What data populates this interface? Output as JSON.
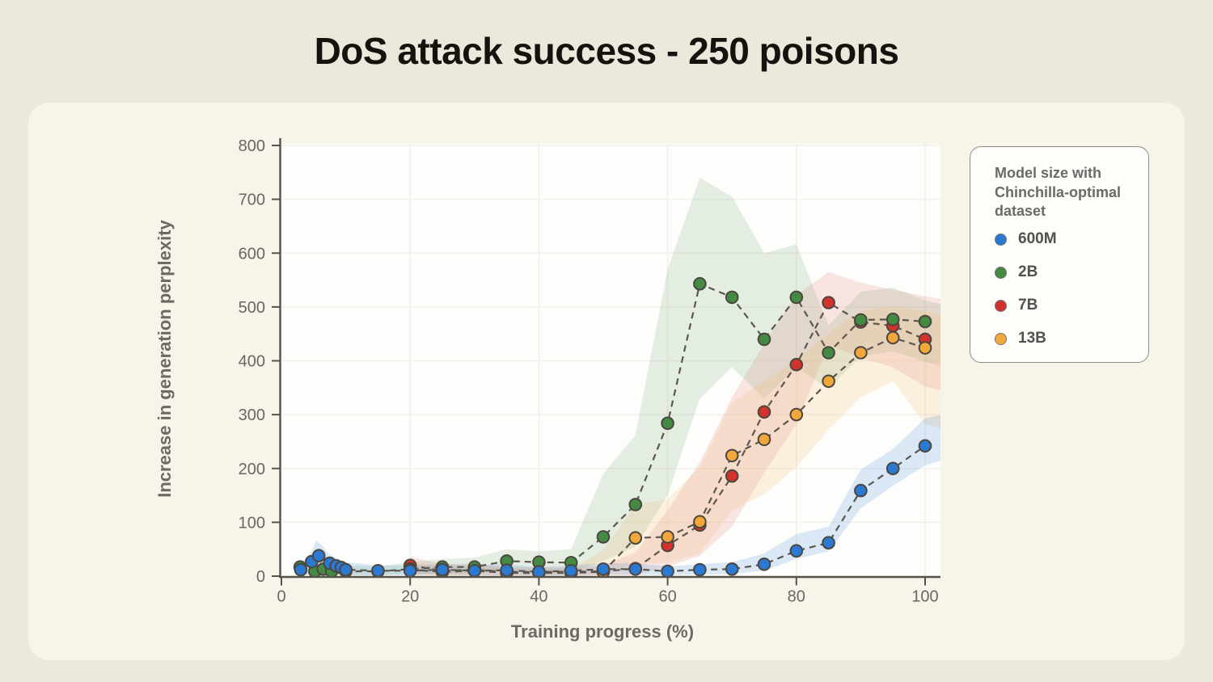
{
  "page": {
    "title": "DoS attack success - 250 poisons"
  },
  "chart_data": {
    "type": "line",
    "title": "DoS attack success - 250 poisons",
    "xlabel": "Training progress (%)",
    "ylabel": "Increase in generation perplexity",
    "xlim": [
      0,
      102.5
    ],
    "ylim": [
      0,
      800
    ],
    "xticks": [
      0,
      20,
      40,
      60,
      80,
      100
    ],
    "yticks": [
      0,
      100,
      200,
      300,
      400,
      500,
      600,
      700,
      800
    ],
    "grid": true,
    "marker_style": "circle-dashed-line",
    "line_color": "#5b574f",
    "legend": {
      "title": "Model size with Chinchilla-optimal dataset",
      "position": "outside-right"
    },
    "series": [
      {
        "name": "600M",
        "color": "#2b79d2",
        "band_color": "rgba(96,153,219,0.22)",
        "points": [
          [
            3,
            12
          ],
          [
            4.7,
            27
          ],
          [
            5.8,
            38
          ],
          [
            7.5,
            24
          ],
          [
            8.5,
            19
          ],
          [
            9.3,
            16
          ],
          [
            10,
            12
          ],
          [
            15,
            10
          ],
          [
            20,
            10
          ],
          [
            25,
            12
          ],
          [
            30,
            10
          ],
          [
            35,
            11
          ],
          [
            40,
            8
          ],
          [
            45,
            10
          ],
          [
            50,
            13
          ],
          [
            55,
            13
          ],
          [
            60,
            9
          ],
          [
            65,
            12
          ],
          [
            70,
            13
          ],
          [
            75,
            22
          ],
          [
            80,
            47
          ],
          [
            85,
            62
          ],
          [
            90,
            159
          ],
          [
            95,
            200
          ],
          [
            100,
            242
          ]
        ],
        "band": [
          [
            3,
            0,
            24
          ],
          [
            4.5,
            4,
            42
          ],
          [
            5.4,
            8,
            66
          ],
          [
            6.2,
            6,
            58
          ],
          [
            7.5,
            4,
            40
          ],
          [
            8.5,
            3,
            34
          ],
          [
            10,
            2,
            26
          ],
          [
            15,
            2,
            20
          ],
          [
            20,
            2,
            20
          ],
          [
            25,
            3,
            22
          ],
          [
            30,
            2,
            20
          ],
          [
            35,
            2,
            22
          ],
          [
            40,
            1,
            16
          ],
          [
            45,
            2,
            20
          ],
          [
            50,
            3,
            24
          ],
          [
            55,
            3,
            24
          ],
          [
            60,
            2,
            18
          ],
          [
            65,
            3,
            22
          ],
          [
            70,
            4,
            26
          ],
          [
            75,
            10,
            42
          ],
          [
            80,
            32,
            78
          ],
          [
            85,
            46,
            92
          ],
          [
            90,
            126,
            198
          ],
          [
            95,
            168,
            236
          ],
          [
            100,
            206,
            293
          ],
          [
            102.5,
            215,
            300
          ]
        ]
      },
      {
        "name": "2B",
        "color": "#448a43",
        "band_color": "rgba(101,160,101,0.17)",
        "points": [
          [
            2.9,
            17
          ],
          [
            5.2,
            9
          ],
          [
            6.5,
            13
          ],
          [
            7.8,
            9
          ],
          [
            10,
            9
          ],
          [
            15,
            9
          ],
          [
            20,
            13
          ],
          [
            25,
            17
          ],
          [
            30,
            17
          ],
          [
            35,
            28
          ],
          [
            40,
            26
          ],
          [
            45,
            25
          ],
          [
            50,
            73
          ],
          [
            55,
            133
          ],
          [
            60,
            284
          ],
          [
            65,
            543
          ],
          [
            70,
            518
          ],
          [
            75,
            440
          ],
          [
            80,
            518
          ],
          [
            85,
            415
          ],
          [
            90,
            476
          ],
          [
            95,
            477
          ],
          [
            100,
            473
          ]
        ],
        "band": [
          [
            2.9,
            4,
            30
          ],
          [
            5.2,
            2,
            22
          ],
          [
            10,
            2,
            20
          ],
          [
            15,
            2,
            18
          ],
          [
            20,
            4,
            26
          ],
          [
            25,
            5,
            32
          ],
          [
            30,
            5,
            34
          ],
          [
            35,
            12,
            50
          ],
          [
            40,
            10,
            46
          ],
          [
            45,
            8,
            50
          ],
          [
            50,
            28,
            190
          ],
          [
            55,
            55,
            262
          ],
          [
            60,
            150,
            570
          ],
          [
            65,
            330,
            740
          ],
          [
            70,
            388,
            705
          ],
          [
            75,
            330,
            600
          ],
          [
            80,
            388,
            616
          ],
          [
            85,
            348,
            466
          ],
          [
            90,
            408,
            528
          ],
          [
            95,
            418,
            536
          ],
          [
            100,
            398,
            512
          ],
          [
            102.5,
            390,
            505
          ]
        ]
      },
      {
        "name": "7B",
        "color": "#d2312c",
        "band_color": "rgba(219,95,88,0.15)",
        "points": [
          [
            20,
            20
          ],
          [
            25,
            10
          ],
          [
            30,
            12
          ],
          [
            35,
            8
          ],
          [
            40,
            8
          ],
          [
            45,
            8
          ],
          [
            50,
            9
          ],
          [
            55,
            14
          ],
          [
            60,
            57
          ],
          [
            65,
            95
          ],
          [
            70,
            186
          ],
          [
            75,
            305
          ],
          [
            80,
            393
          ],
          [
            85,
            508
          ],
          [
            90,
            472
          ],
          [
            95,
            465
          ],
          [
            100,
            440
          ]
        ],
        "band": [
          [
            20,
            3,
            36
          ],
          [
            25,
            2,
            22
          ],
          [
            30,
            2,
            24
          ],
          [
            35,
            1,
            16
          ],
          [
            40,
            1,
            16
          ],
          [
            45,
            1,
            16
          ],
          [
            50,
            1,
            20
          ],
          [
            55,
            2,
            44
          ],
          [
            60,
            18,
            122
          ],
          [
            65,
            38,
            212
          ],
          [
            70,
            92,
            332
          ],
          [
            75,
            192,
            432
          ],
          [
            80,
            282,
            522
          ],
          [
            85,
            430,
            565
          ],
          [
            90,
            405,
            545
          ],
          [
            95,
            388,
            532
          ],
          [
            100,
            352,
            520
          ],
          [
            102.5,
            345,
            515
          ]
        ]
      },
      {
        "name": "13B",
        "color": "#f2a73b",
        "band_color": "rgba(243,180,94,0.18)",
        "points": [
          [
            20,
            12
          ],
          [
            25,
            8
          ],
          [
            30,
            10
          ],
          [
            35,
            6
          ],
          [
            40,
            6
          ],
          [
            45,
            6
          ],
          [
            50,
            8
          ],
          [
            55,
            71
          ],
          [
            60,
            73
          ],
          [
            65,
            101
          ],
          [
            70,
            224
          ],
          [
            75,
            254
          ],
          [
            80,
            300
          ],
          [
            85,
            362
          ],
          [
            90,
            415
          ],
          [
            95,
            443
          ],
          [
            100,
            424
          ]
        ],
        "band": [
          [
            20,
            2,
            26
          ],
          [
            25,
            1,
            18
          ],
          [
            30,
            2,
            20
          ],
          [
            35,
            1,
            14
          ],
          [
            40,
            1,
            14
          ],
          [
            45,
            1,
            14
          ],
          [
            50,
            2,
            48
          ],
          [
            55,
            22,
            133
          ],
          [
            60,
            25,
            143
          ],
          [
            65,
            42,
            203
          ],
          [
            70,
            122,
            323
          ],
          [
            75,
            152,
            362
          ],
          [
            80,
            202,
            402
          ],
          [
            85,
            272,
            452
          ],
          [
            90,
            332,
            492
          ],
          [
            95,
            362,
            502
          ],
          [
            100,
            282,
            492
          ],
          [
            102.5,
            275,
            485
          ]
        ]
      }
    ]
  }
}
